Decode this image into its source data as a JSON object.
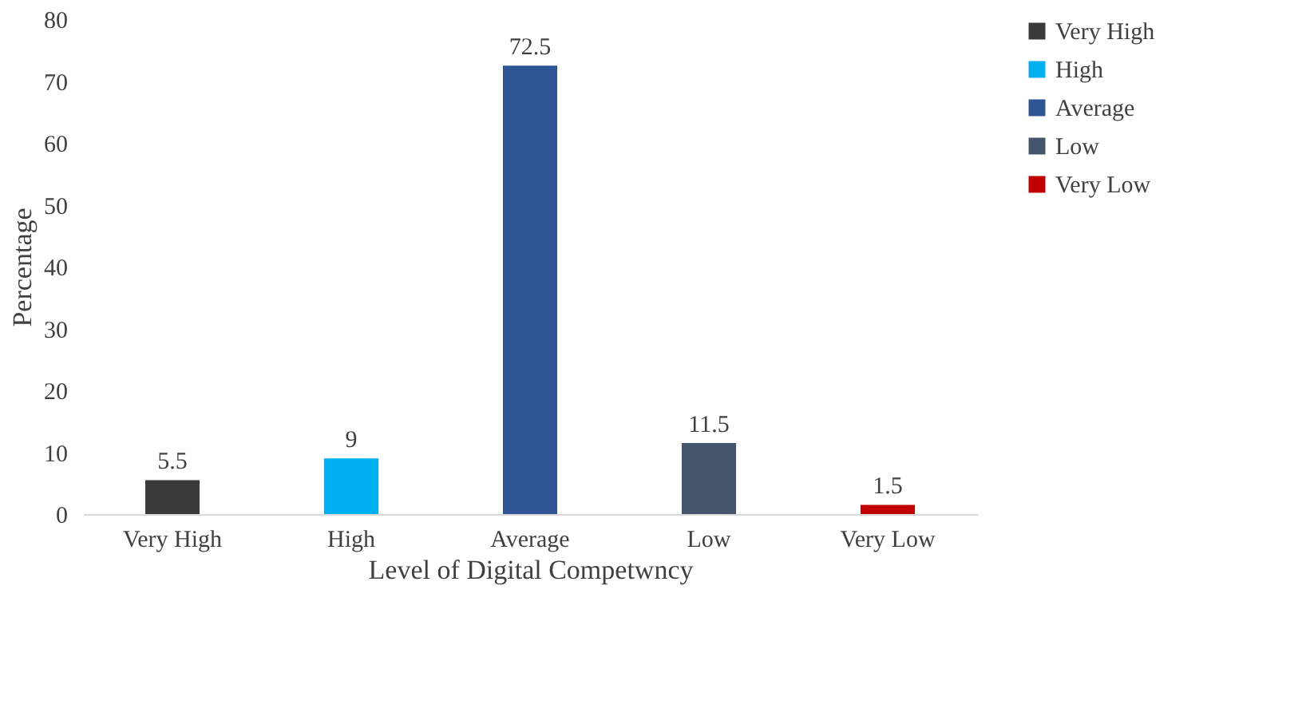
{
  "chart_data": {
    "type": "bar",
    "categories": [
      "Very High",
      "High",
      "Average",
      "Low",
      "Very Low"
    ],
    "series": [
      {
        "name": "Very High",
        "color": "#3a3a3a",
        "values": [
          5.5,
          null,
          null,
          null,
          null
        ]
      },
      {
        "name": "High",
        "color": "#00b0f0",
        "values": [
          null,
          9,
          null,
          null,
          null
        ]
      },
      {
        "name": "Average",
        "color": "#2f5597",
        "values": [
          null,
          null,
          72.5,
          null,
          null
        ]
      },
      {
        "name": "Low",
        "color": "#44546a",
        "values": [
          null,
          null,
          null,
          11.5,
          null
        ]
      },
      {
        "name": "Very Low",
        "color": "#c00000",
        "values": [
          null,
          null,
          null,
          null,
          1.5
        ]
      }
    ],
    "xlabel": "Level of Digital Competwncy",
    "ylabel": "Percentage",
    "ylim": [
      0,
      80
    ],
    "yticks": [
      0,
      10,
      20,
      30,
      40,
      50,
      60,
      70,
      80
    ],
    "grid": false,
    "legend": "right",
    "data_labels": true
  }
}
